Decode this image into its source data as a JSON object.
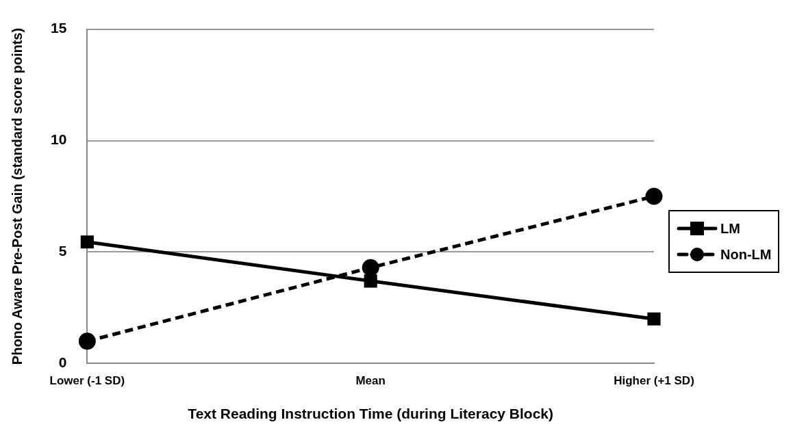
{
  "chart_data": {
    "type": "line",
    "xlabel": "Text Reading Instruction Time (during Literacy Block)",
    "ylabel": "Phono Aware Pre-Post Gain (standard score points)",
    "categories": [
      "Lower (-1 SD)",
      "Mean",
      "Higher (+1 SD)"
    ],
    "series": [
      {
        "name": "LM",
        "color": "#000000",
        "values": [
          5.45,
          3.7,
          2.0
        ],
        "marker": "square",
        "line_style": "solid"
      },
      {
        "name": "Non-LM",
        "color": "#000000",
        "values": [
          1.0,
          4.3,
          7.5
        ],
        "marker": "circle",
        "line_style": "dashed"
      }
    ],
    "ylim": [
      0,
      15
    ],
    "yticks": [
      0,
      5,
      10,
      15
    ],
    "grid": "y",
    "legend": "right"
  }
}
